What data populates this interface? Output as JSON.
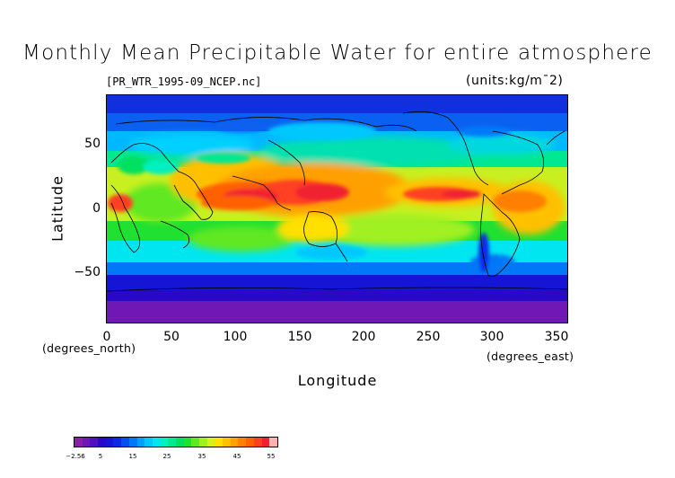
{
  "title": "Monthly Mean Precipitable Water for entire atmosphere",
  "file_label": "[PR_WTR_1995-09_NCEP.nc]",
  "units_label": "(units:kg/m¯2)",
  "chart_data": {
    "type": "heatmap",
    "title": "Monthly Mean Precipitable Water for entire atmosphere",
    "xlabel": "Longitude",
    "ylabel": "Latitude",
    "x_unit": "(degrees_east)",
    "y_unit": "(degrees_north)",
    "xlim": [
      0,
      360
    ],
    "ylim": [
      -90,
      90
    ],
    "x_ticks": [
      "0",
      "50",
      "100",
      "150",
      "200",
      "250",
      "300",
      "350"
    ],
    "y_ticks": [
      "50",
      "0",
      "−50"
    ],
    "colorbar": {
      "min": -2.56,
      "max": 55,
      "tick_labels": [
        "−2.56",
        "5",
        "15",
        "25",
        "35",
        "45",
        "55"
      ],
      "colors": [
        "#8a1fa8",
        "#6f18b5",
        "#5010c0",
        "#2a08c8",
        "#1515d8",
        "#0a2ae6",
        "#0050f0",
        "#0078f8",
        "#00a0ff",
        "#00c8ff",
        "#00e6f0",
        "#00f0c0",
        "#00e890",
        "#00e060",
        "#20e030",
        "#60e820",
        "#a0f020",
        "#d8f020",
        "#ffe000",
        "#ffc000",
        "#ffa000",
        "#ff8000",
        "#ff6000",
        "#ff4020",
        "#f02030",
        "#ffb0b0"
      ]
    }
  },
  "ticks": {
    "x": [
      "0",
      "50",
      "100",
      "150",
      "200",
      "250",
      "300",
      "350"
    ],
    "y": [
      "50",
      "0",
      "−50"
    ],
    "x_unit": "(degrees_east)",
    "y_unit": "(degrees_north)",
    "xlabel": "Longitude",
    "ylabel": "Latitude"
  }
}
